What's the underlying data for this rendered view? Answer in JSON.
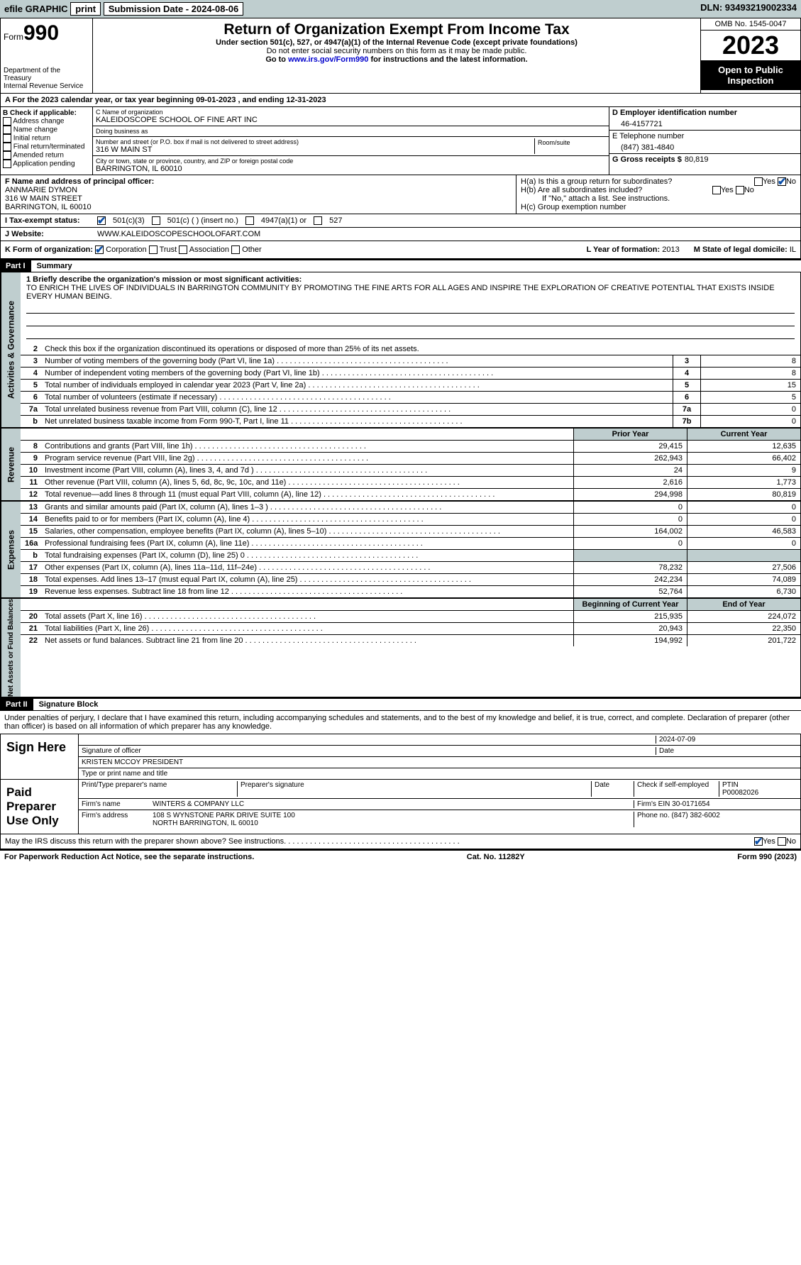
{
  "topbar": {
    "efile": "efile GRAPHIC",
    "print": "print",
    "submission": "Submission Date - 2024-08-06",
    "dln": "DLN: 93493219002334"
  },
  "header": {
    "form": "Form",
    "number": "990",
    "dept": "Department of the Treasury\nInternal Revenue Service",
    "title": "Return of Organization Exempt From Income Tax",
    "sub1": "Under section 501(c), 527, or 4947(a)(1) of the Internal Revenue Code (except private foundations)",
    "sub2": "Do not enter social security numbers on this form as it may be made public.",
    "sub3_pre": "Go to ",
    "sub3_link": "www.irs.gov/Form990",
    "sub3_post": " for instructions and the latest information.",
    "omb": "OMB No. 1545-0047",
    "year": "2023",
    "inspect": "Open to Public Inspection"
  },
  "calendar": "A For the 2023 calendar year, or tax year beginning 09-01-2023    , and ending 12-31-2023",
  "boxB": {
    "title": "B Check if applicable:",
    "items": [
      "Address change",
      "Name change",
      "Initial return",
      "Final return/terminated",
      "Amended return",
      "Application pending"
    ]
  },
  "boxC": {
    "name_label": "C Name of organization",
    "name": "KALEIDOSCOPE SCHOOL OF FINE ART INC",
    "dba": "Doing business as",
    "addr_label": "Number and street (or P.O. box if mail is not delivered to street address)",
    "addr": "316 W MAIN ST",
    "room": "Room/suite",
    "city_label": "City or town, state or province, country, and ZIP or foreign postal code",
    "city": "BARRINGTON, IL  60010"
  },
  "boxD": {
    "label": "D Employer identification number",
    "value": "46-4157721"
  },
  "boxE": {
    "label": "E Telephone number",
    "value": "(847) 381-4840"
  },
  "boxG": {
    "label": "G Gross receipts $",
    "value": "80,819"
  },
  "boxF": {
    "label": "F  Name and address of principal officer:",
    "name": "ANNMARIE DYMON",
    "addr1": "316 W MAIN STREET",
    "addr2": "BARRINGTON, IL  60010"
  },
  "boxH": {
    "a": "H(a)  Is this a group return for subordinates?",
    "b": "H(b)  Are all subordinates included?",
    "b_note": "If \"No,\" attach a list. See instructions.",
    "c": "H(c)  Group exemption number",
    "yes": "Yes",
    "no": "No"
  },
  "boxI": {
    "label": "I    Tax-exempt status:",
    "opts": [
      "501(c)(3)",
      "501(c) (  ) (insert no.)",
      "4947(a)(1) or",
      "527"
    ]
  },
  "boxJ": {
    "label": "J    Website:",
    "value": "WWW.KALEIDOSCOPESCHOOLOFART.COM"
  },
  "boxK": {
    "label": "K Form of organization:",
    "opts": [
      "Corporation",
      "Trust",
      "Association",
      "Other"
    ]
  },
  "boxL": {
    "label": "L Year of formation:",
    "value": "2013"
  },
  "boxM": {
    "label": "M State of legal domicile:",
    "value": "IL"
  },
  "part1": {
    "head": "Part I",
    "title": "Summary",
    "q1_label": "1  Briefly describe the organization's mission or most significant activities:",
    "q1_text": "TO ENRICH THE LIVES OF INDIVIDUALS IN BARRINGTON COMMUNITY BY PROMOTING THE FINE ARTS FOR ALL AGES AND INSPIRE THE EXPLORATION OF CREATIVE POTENTIAL THAT EXISTS INSIDE EVERY HUMAN BEING.",
    "q2": "Check this box        if the organization discontinued its operations or disposed of more than 25% of its net assets.",
    "lines_gov": [
      {
        "n": "3",
        "d": "Number of voting members of the governing body (Part VI, line 1a)",
        "box": "3",
        "v": "8"
      },
      {
        "n": "4",
        "d": "Number of independent voting members of the governing body (Part VI, line 1b)",
        "box": "4",
        "v": "8"
      },
      {
        "n": "5",
        "d": "Total number of individuals employed in calendar year 2023 (Part V, line 2a)",
        "box": "5",
        "v": "15"
      },
      {
        "n": "6",
        "d": "Total number of volunteers (estimate if necessary)",
        "box": "6",
        "v": "5"
      },
      {
        "n": "7a",
        "d": "Total unrelated business revenue from Part VIII, column (C), line 12",
        "box": "7a",
        "v": "0"
      },
      {
        "n": "b",
        "d": "Net unrelated business taxable income from Form 990-T, Part I, line 11",
        "box": "7b",
        "v": "0"
      }
    ],
    "head_prior": "Prior Year",
    "head_current": "Current Year",
    "revenue": [
      {
        "n": "8",
        "d": "Contributions and grants (Part VIII, line 1h)",
        "p": "29,415",
        "c": "12,635"
      },
      {
        "n": "9",
        "d": "Program service revenue (Part VIII, line 2g)",
        "p": "262,943",
        "c": "66,402"
      },
      {
        "n": "10",
        "d": "Investment income (Part VIII, column (A), lines 3, 4, and 7d )",
        "p": "24",
        "c": "9"
      },
      {
        "n": "11",
        "d": "Other revenue (Part VIII, column (A), lines 5, 6d, 8c, 9c, 10c, and 11e)",
        "p": "2,616",
        "c": "1,773"
      },
      {
        "n": "12",
        "d": "Total revenue—add lines 8 through 11 (must equal Part VIII, column (A), line 12)",
        "p": "294,998",
        "c": "80,819"
      }
    ],
    "expenses": [
      {
        "n": "13",
        "d": "Grants and similar amounts paid (Part IX, column (A), lines 1–3 )",
        "p": "0",
        "c": "0"
      },
      {
        "n": "14",
        "d": "Benefits paid to or for members (Part IX, column (A), line 4)",
        "p": "0",
        "c": "0"
      },
      {
        "n": "15",
        "d": "Salaries, other compensation, employee benefits (Part IX, column (A), lines 5–10)",
        "p": "164,002",
        "c": "46,583"
      },
      {
        "n": "16a",
        "d": "Professional fundraising fees (Part IX, column (A), line 11e)",
        "p": "0",
        "c": "0"
      },
      {
        "n": "b",
        "d": "Total fundraising expenses (Part IX, column (D), line 25) 0",
        "p": "GREY",
        "c": "GREY"
      },
      {
        "n": "17",
        "d": "Other expenses (Part IX, column (A), lines 11a–11d, 11f–24e)",
        "p": "78,232",
        "c": "27,506"
      },
      {
        "n": "18",
        "d": "Total expenses. Add lines 13–17 (must equal Part IX, column (A), line 25)",
        "p": "242,234",
        "c": "74,089"
      },
      {
        "n": "19",
        "d": "Revenue less expenses. Subtract line 18 from line 12",
        "p": "52,764",
        "c": "6,730"
      }
    ],
    "head_begin": "Beginning of Current Year",
    "head_end": "End of Year",
    "netassets": [
      {
        "n": "20",
        "d": "Total assets (Part X, line 16)",
        "p": "215,935",
        "c": "224,072"
      },
      {
        "n": "21",
        "d": "Total liabilities (Part X, line 26)",
        "p": "20,943",
        "c": "22,350"
      },
      {
        "n": "22",
        "d": "Net assets or fund balances. Subtract line 21 from line 20",
        "p": "194,992",
        "c": "201,722"
      }
    ]
  },
  "part2": {
    "head": "Part II",
    "title": "Signature Block"
  },
  "penalties": "Under penalties of perjury, I declare that I have examined this return, including accompanying schedules and statements, and to the best of my knowledge and belief, it is true, correct, and complete. Declaration of preparer (other than officer) is based on all information of which preparer has any knowledge.",
  "sign": {
    "here": "Sign Here",
    "sig_officer": "Signature of officer",
    "officer_name": "KRISTEN MCCOY PRESIDENT",
    "type_name": "Type or print name and title",
    "date": "2024-07-09",
    "date_label": "Date"
  },
  "paid": {
    "label": "Paid Preparer Use Only",
    "preparer_name": "Print/Type preparer's name",
    "preparer_sig": "Preparer's signature",
    "date": "Date",
    "check": "Check         if self-employed",
    "ptin_label": "PTIN",
    "ptin": "P00082026",
    "firm_name_label": "Firm's name",
    "firm_name": "WINTERS & COMPANY LLC",
    "firm_ein_label": "Firm's EIN",
    "firm_ein": "30-0171654",
    "firm_addr_label": "Firm's address",
    "firm_addr1": "108 S WYNSTONE PARK DRIVE SUITE 100",
    "firm_addr2": "NORTH BARRINGTON, IL  60010",
    "phone_label": "Phone no.",
    "phone": "(847) 382-6002"
  },
  "discuss": "May the IRS discuss this return with the preparer shown above? See instructions.",
  "footer": {
    "left": "For Paperwork Reduction Act Notice, see the separate instructions.",
    "mid": "Cat. No. 11282Y",
    "right": "Form 990 (2023)"
  },
  "tabs": {
    "gov": "Activities & Governance",
    "rev": "Revenue",
    "exp": "Expenses",
    "net": "Net Assets or Fund Balances"
  }
}
